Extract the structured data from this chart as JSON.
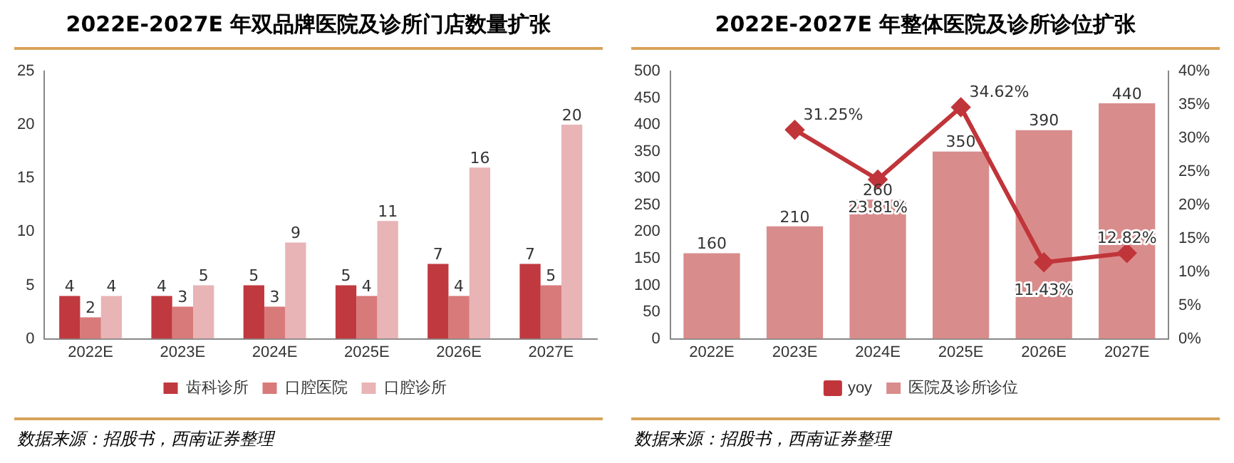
{
  "chart_data": [
    {
      "type": "bar",
      "title": "2022E-2027E 年双品牌医院及诊所门店数量扩张",
      "categories": [
        "2022E",
        "2023E",
        "2024E",
        "2025E",
        "2026E",
        "2027E"
      ],
      "series": [
        {
          "name": "齿科诊所",
          "color": "#c0393f",
          "values": [
            4,
            4,
            5,
            5,
            7,
            7
          ]
        },
        {
          "name": "口腔医院",
          "color": "#d97a7a",
          "values": [
            2,
            3,
            3,
            4,
            4,
            5
          ]
        },
        {
          "name": "口腔诊所",
          "color": "#e8b4b6",
          "values": [
            4,
            5,
            9,
            11,
            16,
            20
          ]
        }
      ],
      "ylim": [
        0,
        25
      ],
      "yticks": [
        0,
        5,
        10,
        15,
        20,
        25
      ],
      "grid": false,
      "legend": "bottom",
      "data_labels": true,
      "annotations": [
        "数据来源：招股书，西南证券整理"
      ]
    },
    {
      "type": "bar",
      "title": "2022E-2027E 年整体医院及诊所诊位扩张",
      "categories": [
        "2022E",
        "2023E",
        "2024E",
        "2025E",
        "2026E",
        "2027E"
      ],
      "series": [
        {
          "name": "医院及诊所诊位",
          "color": "#d98c8c",
          "values": [
            160,
            210,
            260,
            350,
            390,
            440
          ]
        },
        {
          "name": "yoy",
          "type": "line",
          "axis": "y2",
          "color": "#c0353a",
          "values": [
            null,
            31.25,
            23.81,
            34.62,
            11.43,
            12.82
          ],
          "value_labels": [
            null,
            "31.25%",
            "23.81%",
            "34.62%",
            "11.43%",
            "12.82%"
          ]
        }
      ],
      "ylim": [
        0,
        500
      ],
      "yticks": [
        0,
        50,
        100,
        150,
        200,
        250,
        300,
        350,
        400,
        450,
        500
      ],
      "y2lim": [
        0,
        40
      ],
      "y2ticks": [
        {
          "value": 0,
          "label": "0%"
        },
        {
          "value": 5,
          "label": "5%"
        },
        {
          "value": 10,
          "label": "10%"
        },
        {
          "value": 15,
          "label": "15%"
        },
        {
          "value": 20,
          "label": "20%"
        },
        {
          "value": 25,
          "label": "25%"
        },
        {
          "value": 30,
          "label": "30%"
        },
        {
          "value": 35,
          "label": "35%"
        },
        {
          "value": 40,
          "label": "40%"
        }
      ],
      "grid": false,
      "legend": "bottom",
      "marker": "diamond",
      "data_labels": true,
      "annotations": [
        "数据来源：招股书，西南证券整理"
      ]
    }
  ]
}
